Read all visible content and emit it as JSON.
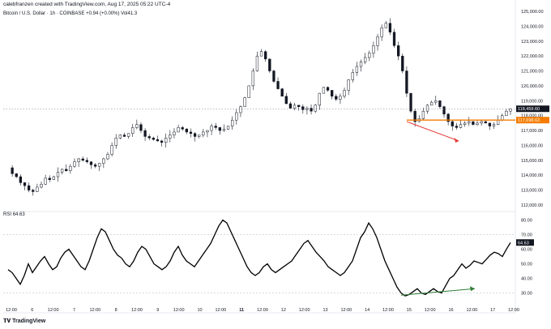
{
  "header": {
    "byline": "calebfranzen created with TradingView.com, Aug 17, 2025 05:22 UTC-4",
    "symbol_name": "Bitcoin / U.S. Dollar",
    "interval": "1h",
    "exchange": "COINBASE",
    "change": "+0.94 (+0.00%)",
    "volume": "Vol41.3"
  },
  "rsi_panel": {
    "label": "RSI",
    "value": "64.63"
  },
  "footer": {
    "logo_text": "TradingView"
  },
  "colors": {
    "up": "#131722",
    "down": "#131722",
    "rsi_line": "#000000",
    "support_line": "#f57c00",
    "bear_arrow": "#e53935",
    "bull_arrow": "#2e7d32",
    "last_price_tag": "#131722",
    "support_tag": "#f57c00"
  },
  "chart_data": [
    {
      "type": "candlestick",
      "x_labels": [
        "12:00",
        "6",
        "12:00",
        "7",
        "12:00",
        "8",
        "12:00",
        "9",
        "12:00",
        "10",
        "12:00",
        "11",
        "12:00",
        "12",
        "12:00",
        "13",
        "12:00",
        "14",
        "12:00",
        "15",
        "12:00",
        "16",
        "12:00",
        "17",
        "12:00"
      ],
      "y_ticks": [
        "125,000.00",
        "124,000.00",
        "123,000.00",
        "122,000.00",
        "121,000.00",
        "120,000.00",
        "119,000.00",
        "118,000.00",
        "117,000.00",
        "116,000.00",
        "115,000.00",
        "114,000.00",
        "113,000.00",
        "112,000.00"
      ],
      "ylim": [
        112000,
        125000
      ],
      "last_price": "118,459.60",
      "support_price": "117,698.63",
      "support_level": 117698.63,
      "close_path": [
        [
          0,
          114500
        ],
        [
          1,
          114100
        ],
        [
          2,
          113900
        ],
        [
          3,
          113500
        ],
        [
          4,
          113300
        ],
        [
          5,
          113000
        ],
        [
          6,
          112900
        ],
        [
          7,
          113200
        ],
        [
          8,
          113400
        ],
        [
          9,
          113800
        ],
        [
          10,
          113700
        ],
        [
          11,
          113900
        ],
        [
          12,
          114200
        ],
        [
          13,
          114400
        ],
        [
          14,
          114300
        ],
        [
          15,
          114600
        ],
        [
          16,
          114900
        ],
        [
          17,
          115100
        ],
        [
          18,
          115000
        ],
        [
          19,
          114900
        ],
        [
          20,
          114700
        ],
        [
          21,
          114600
        ],
        [
          22,
          114800
        ],
        [
          23,
          115100
        ],
        [
          24,
          115400
        ],
        [
          25,
          116000
        ],
        [
          26,
          116500
        ],
        [
          27,
          116700
        ],
        [
          28,
          116600
        ],
        [
          29,
          116800
        ],
        [
          30,
          117200
        ],
        [
          31,
          117400
        ],
        [
          32,
          117000
        ],
        [
          33,
          116600
        ],
        [
          34,
          116500
        ],
        [
          35,
          116400
        ],
        [
          36,
          116300
        ],
        [
          37,
          116200
        ],
        [
          38,
          116500
        ],
        [
          39,
          116700
        ],
        [
          40,
          116900
        ],
        [
          41,
          117200
        ],
        [
          42,
          117100
        ],
        [
          43,
          116900
        ],
        [
          44,
          116800
        ],
        [
          45,
          116600
        ],
        [
          46,
          116700
        ],
        [
          47,
          116900
        ],
        [
          48,
          117000
        ],
        [
          49,
          117300
        ],
        [
          50,
          117200
        ],
        [
          51,
          117000
        ],
        [
          52,
          117100
        ],
        [
          53,
          117300
        ],
        [
          54,
          117700
        ],
        [
          55,
          118200
        ],
        [
          56,
          118600
        ],
        [
          57,
          119200
        ],
        [
          58,
          120000
        ],
        [
          59,
          121000
        ],
        [
          60,
          122000
        ],
        [
          61,
          122300
        ],
        [
          62,
          121800
        ],
        [
          63,
          121000
        ],
        [
          64,
          120300
        ],
        [
          65,
          119800
        ],
        [
          66,
          119300
        ],
        [
          67,
          118800
        ],
        [
          68,
          118500
        ],
        [
          69,
          118700
        ],
        [
          70,
          118600
        ],
        [
          71,
          118400
        ],
        [
          72,
          118500
        ],
        [
          73,
          118300
        ],
        [
          74,
          118700
        ],
        [
          75,
          119500
        ],
        [
          76,
          119900
        ],
        [
          77,
          119700
        ],
        [
          78,
          119300
        ],
        [
          79,
          119100
        ],
        [
          80,
          119300
        ],
        [
          81,
          119700
        ],
        [
          82,
          120400
        ],
        [
          83,
          120900
        ],
        [
          84,
          121300
        ],
        [
          85,
          121600
        ],
        [
          86,
          121900
        ],
        [
          87,
          122200
        ],
        [
          88,
          122700
        ],
        [
          89,
          123300
        ],
        [
          90,
          123900
        ],
        [
          91,
          124200
        ],
        [
          92,
          123600
        ],
        [
          93,
          122700
        ],
        [
          94,
          122000
        ],
        [
          95,
          121000
        ],
        [
          96,
          119500
        ],
        [
          97,
          118300
        ],
        [
          98,
          117600
        ],
        [
          99,
          117800
        ],
        [
          100,
          118300
        ],
        [
          101,
          118700
        ],
        [
          102,
          118900
        ],
        [
          103,
          119000
        ],
        [
          104,
          118600
        ],
        [
          105,
          118100
        ],
        [
          106,
          117600
        ],
        [
          107,
          117300
        ],
        [
          108,
          117200
        ],
        [
          109,
          117400
        ],
        [
          110,
          117500
        ],
        [
          111,
          117600
        ],
        [
          112,
          117400
        ],
        [
          113,
          117500
        ],
        [
          114,
          117600
        ],
        [
          115,
          117500
        ],
        [
          116,
          117300
        ],
        [
          117,
          117400
        ],
        [
          118,
          117700
        ],
        [
          119,
          118000
        ],
        [
          120,
          118300
        ],
        [
          121,
          118460
        ]
      ]
    },
    {
      "type": "line",
      "name": "RSI",
      "y_ticks": [
        "80.00",
        "70.00",
        "60.00",
        "50.00",
        "40.00",
        "30.00"
      ],
      "ylim": [
        22,
        82
      ],
      "last_value": "64.63",
      "values": [
        46,
        44,
        40,
        36,
        42,
        50,
        44,
        48,
        52,
        55,
        50,
        46,
        48,
        54,
        58,
        60,
        56,
        52,
        48,
        46,
        52,
        60,
        68,
        74,
        72,
        66,
        60,
        56,
        54,
        50,
        48,
        52,
        58,
        62,
        60,
        55,
        50,
        48,
        46,
        48,
        52,
        58,
        62,
        56,
        52,
        50,
        48,
        52,
        56,
        60,
        64,
        70,
        76,
        80,
        78,
        72,
        66,
        60,
        54,
        48,
        44,
        42,
        44,
        48,
        50,
        46,
        44,
        46,
        48,
        50,
        52,
        56,
        60,
        64,
        66,
        62,
        58,
        55,
        52,
        48,
        46,
        44,
        42,
        44,
        48,
        52,
        60,
        68,
        72,
        78,
        74,
        68,
        60,
        52,
        46,
        40,
        34,
        30,
        28,
        29,
        31,
        33,
        30,
        29,
        31,
        33,
        31,
        30,
        35,
        40,
        42,
        46,
        50,
        47,
        49,
        52,
        51,
        50,
        53,
        56,
        58,
        57,
        55,
        60,
        64.63
      ]
    }
  ]
}
